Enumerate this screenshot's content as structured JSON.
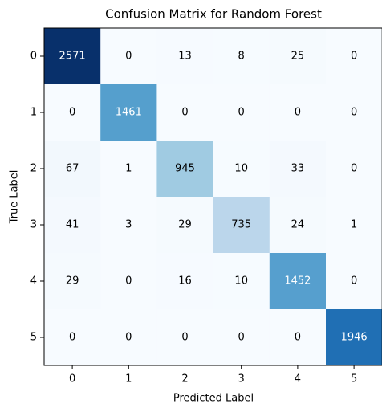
{
  "chart_data": {
    "type": "heatmap",
    "title": "Confusion Matrix for Random Forest",
    "xlabel": "Predicted Label",
    "ylabel": "True Label",
    "x_categories": [
      "0",
      "1",
      "2",
      "3",
      "4",
      "5"
    ],
    "y_categories": [
      "0",
      "1",
      "2",
      "3",
      "4",
      "5"
    ],
    "values": [
      [
        2571,
        0,
        13,
        8,
        25,
        0
      ],
      [
        0,
        1461,
        0,
        0,
        0,
        0
      ],
      [
        67,
        1,
        945,
        10,
        33,
        0
      ],
      [
        41,
        3,
        29,
        735,
        24,
        1
      ],
      [
        29,
        0,
        16,
        10,
        1452,
        0
      ],
      [
        0,
        0,
        0,
        0,
        0,
        1946
      ]
    ],
    "colormap": "Blues"
  }
}
